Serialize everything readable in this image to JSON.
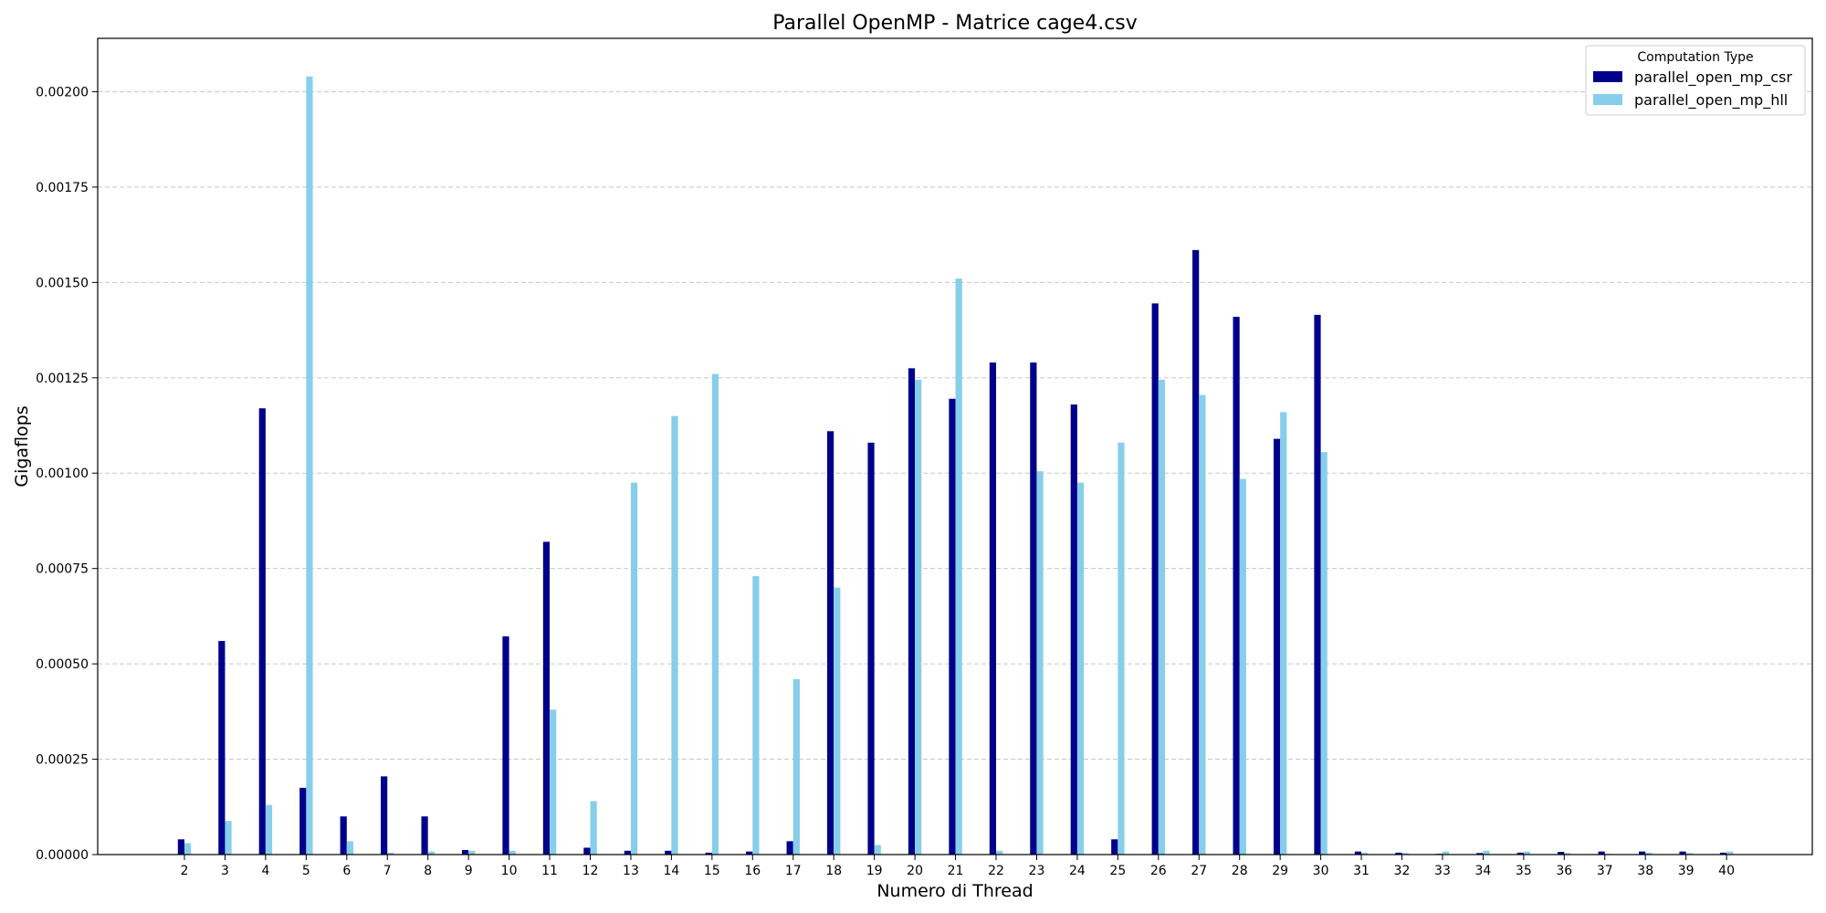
{
  "chart_data": {
    "type": "bar",
    "title": "Parallel OpenMP - Matrice cage4.csv",
    "xlabel": "Numero di Thread",
    "ylabel": "Gigaflops",
    "ylim": [
      0,
      0.00214
    ],
    "yticks": [
      "0.00000",
      "0.00025",
      "0.00050",
      "0.00075",
      "0.00100",
      "0.00125",
      "0.00150",
      "0.00175",
      "0.00200"
    ],
    "ytick_values": [
      0,
      0.00025,
      0.0005,
      0.00075,
      0.001,
      0.00125,
      0.0015,
      0.00175,
      0.002
    ],
    "grid": "y-dashed",
    "legend": {
      "title": "Computation Type",
      "placement": "top-right"
    },
    "categories": [
      "2",
      "3",
      "4",
      "5",
      "6",
      "7",
      "8",
      "9",
      "10",
      "11",
      "12",
      "13",
      "14",
      "15",
      "16",
      "17",
      "18",
      "19",
      "20",
      "21",
      "22",
      "23",
      "24",
      "25",
      "26",
      "27",
      "28",
      "29",
      "30",
      "31",
      "32",
      "33",
      "34",
      "35",
      "36",
      "37",
      "38",
      "39",
      "40"
    ],
    "series": [
      {
        "name": "parallel_open_mp_csr",
        "color": "#00008b",
        "values": [
          4e-05,
          0.00056,
          0.00117,
          0.000175,
          0.0001,
          0.000205,
          0.0001,
          1.2e-05,
          0.000572,
          0.00082,
          1.8e-05,
          1e-05,
          1e-05,
          5e-06,
          8e-06,
          3.5e-05,
          0.00111,
          0.00108,
          0.001275,
          0.001195,
          0.00129,
          0.00129,
          0.00118,
          4e-05,
          0.001445,
          0.001585,
          0.00141,
          0.00109,
          0.001415,
          8e-06,
          5e-06,
          2e-06,
          4e-06,
          5e-06,
          7e-06,
          8e-06,
          8e-06,
          8e-06,
          5e-06
        ]
      },
      {
        "name": "parallel_open_mp_hll",
        "color": "#87ceeb",
        "values": [
          3e-05,
          8.8e-05,
          0.00013,
          0.00204,
          3.5e-05,
          5e-06,
          8e-06,
          1e-05,
          1e-05,
          0.00038,
          0.00014,
          0.000975,
          0.00115,
          0.00126,
          0.00073,
          0.00046,
          0.0007,
          2.5e-05,
          0.001245,
          0.00151,
          1e-05,
          0.001005,
          0.000975,
          0.00108,
          0.001245,
          0.001205,
          0.000985,
          0.00116,
          0.001055,
          5e-06,
          4e-06,
          8e-06,
          1e-05,
          8e-06,
          4e-06,
          2e-06,
          5e-06,
          4e-06,
          8e-06
        ]
      }
    ]
  }
}
